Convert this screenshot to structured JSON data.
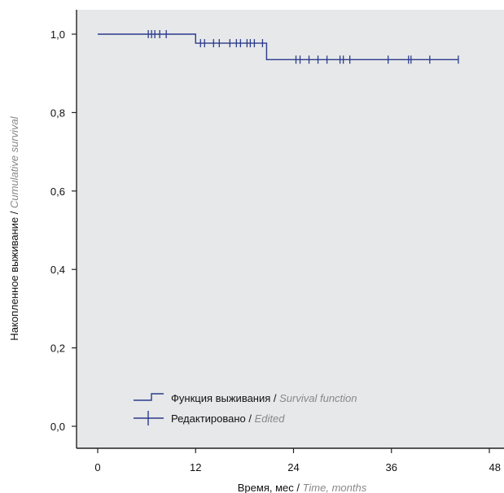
{
  "chart_data": {
    "type": "line",
    "subtype": "kaplan-meier",
    "xlabel": {
      "ru": "Время, мес",
      "sep": " / ",
      "en": "Time, months"
    },
    "ylabel": {
      "ru": "Накопленное выживание",
      "sep": " / ",
      "en": "Cumulative survival"
    },
    "xlim": [
      0,
      48
    ],
    "ylim": [
      0,
      1.05
    ],
    "x_ticks": [
      {
        "value": 0,
        "label": "0"
      },
      {
        "value": 12,
        "label": "12"
      },
      {
        "value": 24,
        "label": "24"
      },
      {
        "value": 36,
        "label": "36"
      },
      {
        "value": 48,
        "label": "48"
      }
    ],
    "y_ticks": [
      {
        "value": 0,
        "label": "0,0"
      },
      {
        "value": 0.2,
        "label": "0,2"
      },
      {
        "value": 0.4,
        "label": "0,4"
      },
      {
        "value": 0.6,
        "label": "0,6"
      },
      {
        "value": 0.8,
        "label": "0,8"
      },
      {
        "value": 1.0,
        "label": "1,0"
      }
    ],
    "survival_steps": [
      {
        "x": 0,
        "y": 1.0
      },
      {
        "x": 12,
        "y": 0.977
      },
      {
        "x": 20.7,
        "y": 0.935
      },
      {
        "x": 44.2,
        "y": 0.935
      }
    ],
    "censored": [
      {
        "x": 6.2,
        "y": 1.0
      },
      {
        "x": 6.6,
        "y": 1.0
      },
      {
        "x": 7.0,
        "y": 1.0
      },
      {
        "x": 7.6,
        "y": 1.0
      },
      {
        "x": 8.4,
        "y": 1.0
      },
      {
        "x": 12.6,
        "y": 0.977
      },
      {
        "x": 13.1,
        "y": 0.977
      },
      {
        "x": 14.2,
        "y": 0.977
      },
      {
        "x": 14.9,
        "y": 0.977
      },
      {
        "x": 16.2,
        "y": 0.977
      },
      {
        "x": 17.0,
        "y": 0.977
      },
      {
        "x": 17.5,
        "y": 0.977
      },
      {
        "x": 18.3,
        "y": 0.977
      },
      {
        "x": 18.7,
        "y": 0.977
      },
      {
        "x": 19.2,
        "y": 0.977
      },
      {
        "x": 20.2,
        "y": 0.977
      },
      {
        "x": 24.3,
        "y": 0.935
      },
      {
        "x": 24.8,
        "y": 0.935
      },
      {
        "x": 25.9,
        "y": 0.935
      },
      {
        "x": 27.0,
        "y": 0.935
      },
      {
        "x": 28.1,
        "y": 0.935
      },
      {
        "x": 29.7,
        "y": 0.935
      },
      {
        "x": 30.1,
        "y": 0.935
      },
      {
        "x": 30.9,
        "y": 0.935
      },
      {
        "x": 35.6,
        "y": 0.935
      },
      {
        "x": 38.1,
        "y": 0.935
      },
      {
        "x": 38.4,
        "y": 0.935
      },
      {
        "x": 40.7,
        "y": 0.935
      },
      {
        "x": 44.2,
        "y": 0.935
      }
    ],
    "legend": [
      {
        "ru": "Функция выживания",
        "sep": " / ",
        "en": "Survival function",
        "marker": "step"
      },
      {
        "ru": "Редактировано",
        "sep": " / ",
        "en": "Edited",
        "marker": "cross"
      }
    ],
    "legend_position": "bottom-left",
    "grid": false,
    "colors": {
      "line": "#2b3a8c",
      "background": "#e6e8e9",
      "axis": "#222222"
    }
  }
}
